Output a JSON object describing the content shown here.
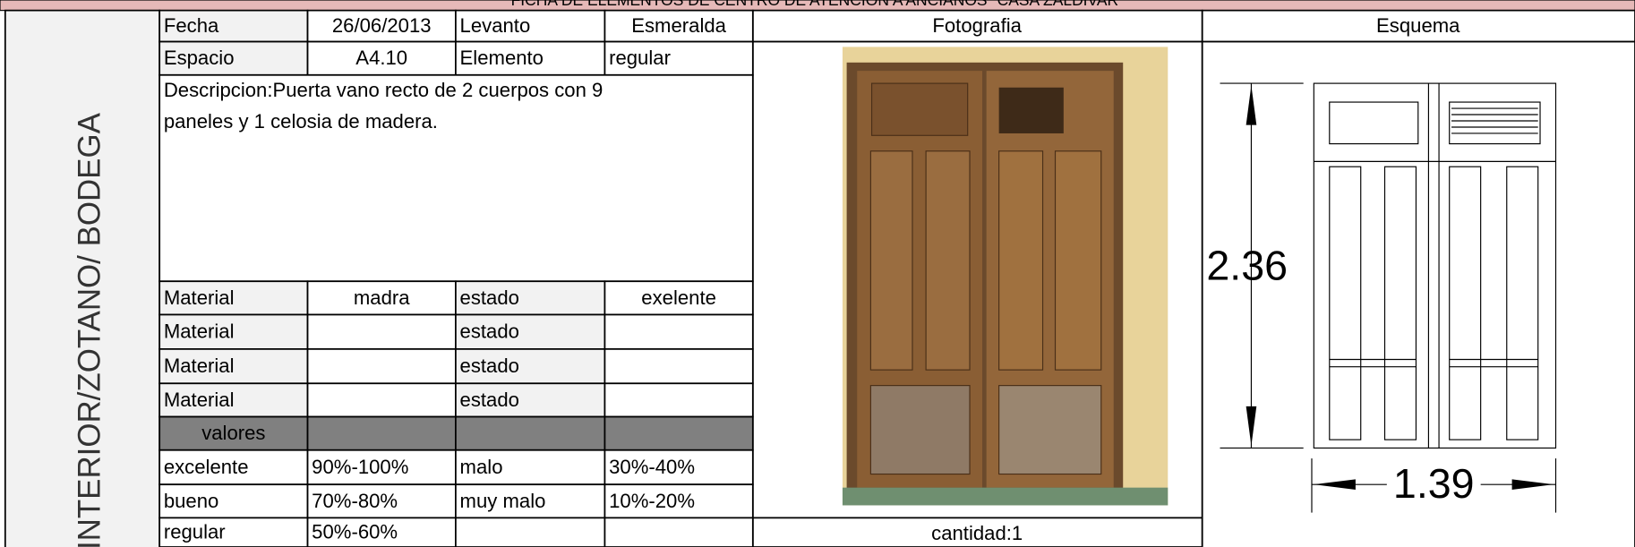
{
  "header": {
    "title": "FICHA DE ELEMENTOS DE CENTRO DE ATENCION A ANCIANOS \"CASA ZALDIVAR\""
  },
  "side_label": "INTERIOR/ZOTANO/ BODEGA",
  "table": {
    "rows": [
      [
        "Fecha",
        "26/06/2013",
        "Levanto",
        "Esmeralda"
      ],
      [
        "Espacio",
        "A4.10",
        "Elemento",
        "regular"
      ],
      [
        "Descripcion:Puerta vano recto de 2 cuerpos con 9",
        "paneles y 1 celosia de madera."
      ],
      [
        "Material",
        "madra",
        "estado",
        "exelente"
      ],
      [
        "Material",
        null,
        "estado",
        null
      ],
      [
        "Material",
        null,
        "estado",
        null
      ],
      [
        "Material",
        null,
        "estado",
        null
      ],
      [
        "valores",
        null,
        null,
        null
      ],
      [
        "excelente",
        "90%-100%",
        "malo",
        "30%-40%"
      ],
      [
        "bueno",
        "70%-80%",
        "muy malo",
        "10%-20%"
      ],
      [
        "regular",
        "50%-60%",
        null,
        null
      ]
    ]
  },
  "photo": {
    "header": "Fotografia",
    "caption": "cantidad:1"
  },
  "schema": {
    "header": "Esquema",
    "height": "2.36",
    "width": "1.39"
  }
}
